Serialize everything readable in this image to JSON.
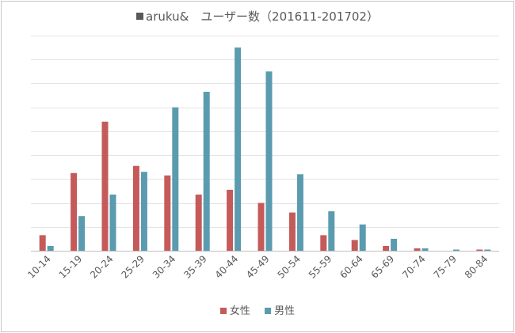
{
  "chart_data": {
    "type": "bar",
    "title": "aruku&　ユーザー数（201611-201702）",
    "title_marker_color": "#595959",
    "xlabel": "",
    "ylabel": "",
    "categories": [
      "10-14",
      "15-19",
      "20-24",
      "25-29",
      "30-34",
      "35-39",
      "40-44",
      "45-49",
      "50-54",
      "55-59",
      "60-64",
      "65-69",
      "70-74",
      "75-79",
      "80-84"
    ],
    "series": [
      {
        "name": "女性",
        "color": "#c55a5a",
        "values": [
          6.5,
          32.5,
          54,
          35.5,
          31.5,
          23.5,
          25.5,
          20,
          16,
          6.5,
          4.5,
          2,
          1,
          0,
          0.5
        ]
      },
      {
        "name": "男性",
        "color": "#5b9bb0",
        "values": [
          2,
          14.5,
          23.5,
          33,
          60,
          66.5,
          85,
          75,
          32,
          16.5,
          11,
          5,
          1,
          0.5,
          0.5
        ]
      }
    ],
    "ylim": [
      0,
      90
    ],
    "y_gridline_step": 10,
    "grid": true,
    "y_tick_labels_shown": false,
    "x_tick_rotation": -45,
    "legend": "bottom"
  }
}
